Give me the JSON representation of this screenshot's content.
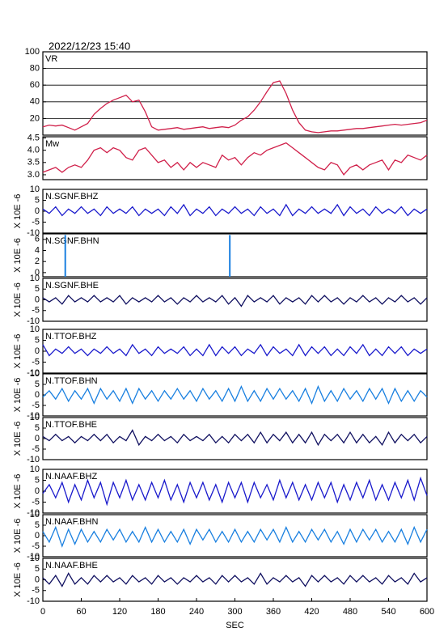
{
  "title": "2022/12/23 15:40",
  "chart_data": [
    {
      "type": "line",
      "title": "VR",
      "color": "#d0204a",
      "grid": true,
      "xlim": [
        0,
        600
      ],
      "ylim": [
        0,
        100
      ],
      "yticks": [
        20,
        40,
        60,
        80,
        100
      ],
      "x": [
        0,
        10,
        20,
        30,
        40,
        50,
        60,
        70,
        80,
        90,
        100,
        110,
        120,
        130,
        140,
        150,
        160,
        170,
        180,
        190,
        200,
        210,
        220,
        230,
        240,
        250,
        260,
        270,
        280,
        290,
        300,
        310,
        320,
        330,
        340,
        350,
        360,
        370,
        380,
        390,
        400,
        410,
        420,
        430,
        440,
        450,
        460,
        470,
        480,
        490,
        500,
        510,
        520,
        530,
        540,
        550,
        560,
        570,
        580,
        590,
        600
      ],
      "values": [
        10,
        12,
        11,
        12,
        9,
        6,
        10,
        14,
        25,
        32,
        38,
        42,
        45,
        48,
        40,
        42,
        28,
        10,
        6,
        7,
        8,
        9,
        7,
        8,
        9,
        10,
        8,
        9,
        10,
        9,
        12,
        18,
        22,
        30,
        40,
        52,
        63,
        65,
        50,
        30,
        15,
        6,
        4,
        3,
        4,
        5,
        5,
        6,
        7,
        8,
        8,
        9,
        10,
        11,
        12,
        13,
        12,
        13,
        14,
        15,
        18
      ]
    },
    {
      "type": "line",
      "title": "Mw",
      "color": "#d0204a",
      "xlim": [
        0,
        600
      ],
      "ylim": [
        2.8,
        4.55
      ],
      "yticks": [
        {
          "value": 3,
          "label": "3.0"
        },
        3.5,
        {
          "value": 4,
          "label": "4.0"
        },
        4.5
      ],
      "x": [
        0,
        10,
        20,
        30,
        40,
        50,
        60,
        70,
        80,
        90,
        100,
        110,
        120,
        130,
        140,
        150,
        160,
        170,
        180,
        190,
        200,
        210,
        220,
        230,
        240,
        250,
        260,
        270,
        280,
        290,
        300,
        310,
        320,
        330,
        340,
        350,
        360,
        370,
        380,
        390,
        400,
        410,
        420,
        430,
        440,
        450,
        460,
        470,
        480,
        490,
        500,
        510,
        520,
        530,
        540,
        550,
        560,
        570,
        580,
        590,
        600
      ],
      "values": [
        3.1,
        3.2,
        3.3,
        3.1,
        3.3,
        3.4,
        3.3,
        3.6,
        4.0,
        4.1,
        3.9,
        4.1,
        4.0,
        3.7,
        3.6,
        4.0,
        4.1,
        3.8,
        3.5,
        3.6,
        3.3,
        3.5,
        3.2,
        3.5,
        3.3,
        3.5,
        3.4,
        3.3,
        3.8,
        3.6,
        3.7,
        3.4,
        3.7,
        3.9,
        3.8,
        4.0,
        4.1,
        4.2,
        4.3,
        4.1,
        3.9,
        3.7,
        3.5,
        3.3,
        3.2,
        3.5,
        3.4,
        3.0,
        3.3,
        3.4,
        3.2,
        3.4,
        3.5,
        3.6,
        3.2,
        3.6,
        3.5,
        3.8,
        3.7,
        3.6,
        3.8
      ]
    },
    {
      "type": "line",
      "title": "N.SGNF.BHZ",
      "y_label": "X 10E -6",
      "color": "#1a1acc",
      "xlim": [
        0,
        600
      ],
      "ylim": [
        -10,
        10
      ],
      "yticks": [
        -10,
        -5,
        0,
        5,
        10
      ],
      "x": [
        0,
        10,
        20,
        30,
        40,
        50,
        60,
        70,
        80,
        90,
        100,
        110,
        120,
        130,
        140,
        150,
        160,
        170,
        180,
        190,
        200,
        210,
        220,
        230,
        240,
        250,
        260,
        270,
        280,
        290,
        300,
        310,
        320,
        330,
        340,
        350,
        360,
        370,
        380,
        390,
        400,
        410,
        420,
        430,
        440,
        450,
        460,
        470,
        480,
        490,
        500,
        510,
        520,
        530,
        540,
        550,
        560,
        570,
        580,
        590,
        600
      ],
      "values": [
        1,
        -1,
        2,
        -2,
        1,
        -1,
        2,
        -1,
        1,
        -2,
        2,
        -1,
        1,
        -1,
        2,
        -2,
        1,
        -1,
        1,
        -2,
        2,
        -1,
        3,
        -2,
        1,
        -1,
        2,
        -2,
        1,
        -1,
        2,
        -1,
        1,
        -2,
        2,
        -1,
        1,
        -2,
        3,
        -2,
        1,
        -1,
        2,
        -1,
        1,
        -1,
        3,
        -2,
        2,
        -1,
        1,
        -2,
        2,
        -1,
        1,
        -1,
        2,
        -2,
        1,
        -1,
        1
      ]
    },
    {
      "type": "stem",
      "title": "N.SGNF.BHN",
      "y_label": "X 10E -6",
      "color": "#1a80e0",
      "xlim": [
        0,
        600
      ],
      "ylim": [
        -0.75,
        7.0
      ],
      "yticks": [
        0,
        2,
        4,
        6
      ],
      "x": [
        35,
        292
      ],
      "values": [
        6.8,
        6.8
      ]
    },
    {
      "type": "line",
      "title": "N.SGNF.BHE",
      "y_label": "X 10E -6",
      "color": "#101060",
      "xlim": [
        0,
        600
      ],
      "ylim": [
        -10,
        10
      ],
      "yticks": [
        -10,
        -5,
        0,
        5,
        10
      ],
      "x": [
        0,
        10,
        20,
        30,
        40,
        50,
        60,
        70,
        80,
        90,
        100,
        110,
        120,
        130,
        140,
        150,
        160,
        170,
        180,
        190,
        200,
        210,
        220,
        230,
        240,
        250,
        260,
        270,
        280,
        290,
        300,
        310,
        320,
        330,
        340,
        350,
        360,
        370,
        380,
        390,
        400,
        410,
        420,
        430,
        440,
        450,
        460,
        470,
        480,
        490,
        500,
        510,
        520,
        530,
        540,
        550,
        560,
        570,
        580,
        590,
        600
      ],
      "values": [
        1,
        -1,
        1,
        -2,
        2,
        -1,
        1,
        -1,
        2,
        -1,
        1,
        -1,
        2,
        -2,
        1,
        -1,
        1,
        -1,
        2,
        -1,
        1,
        -2,
        1,
        -1,
        2,
        -1,
        1,
        -1,
        2,
        -2,
        1,
        -3,
        2,
        -1,
        1,
        -1,
        2,
        -2,
        1,
        -1,
        1,
        -2,
        2,
        -1,
        2,
        -1,
        1,
        -2,
        1,
        -1,
        2,
        -1,
        1,
        -2,
        1,
        -1,
        2,
        -1,
        1,
        -2,
        1
      ]
    },
    {
      "type": "line",
      "title": "N.TTOF.BHZ",
      "y_label": "X 10E -6",
      "color": "#1a1acc",
      "xlim": [
        0,
        600
      ],
      "ylim": [
        -10,
        10
      ],
      "yticks": [
        -10,
        -5,
        0,
        5,
        10
      ],
      "x": [
        0,
        10,
        20,
        30,
        40,
        50,
        60,
        70,
        80,
        90,
        100,
        110,
        120,
        130,
        140,
        150,
        160,
        170,
        180,
        190,
        200,
        210,
        220,
        230,
        240,
        250,
        260,
        270,
        280,
        290,
        300,
        310,
        320,
        330,
        340,
        350,
        360,
        370,
        380,
        390,
        400,
        410,
        420,
        430,
        440,
        450,
        460,
        470,
        480,
        490,
        500,
        510,
        520,
        530,
        540,
        550,
        560,
        570,
        580,
        590,
        600
      ],
      "values": [
        3,
        -2,
        1,
        -1,
        2,
        -1,
        1,
        -2,
        1,
        -1,
        2,
        -1,
        1,
        -2,
        3,
        -1,
        1,
        -2,
        2,
        -1,
        1,
        -1,
        2,
        -2,
        1,
        -2,
        3,
        -2,
        2,
        -1,
        2,
        -2,
        1,
        -1,
        3,
        -2,
        2,
        -1,
        1,
        -2,
        3,
        -2,
        2,
        -1,
        2,
        -2,
        1,
        -2,
        2,
        -1,
        3,
        -2,
        1,
        -2,
        2,
        -1,
        2,
        -2,
        1,
        -1,
        1
      ]
    },
    {
      "type": "line",
      "title": "N.TTOF.BHN",
      "y_label": "X 10E -6",
      "color": "#1a80e0",
      "xlim": [
        0,
        600
      ],
      "ylim": [
        -10,
        10
      ],
      "yticks": [
        -10,
        -5,
        0,
        5,
        10
      ],
      "x": [
        0,
        10,
        20,
        30,
        40,
        50,
        60,
        70,
        80,
        90,
        100,
        110,
        120,
        130,
        140,
        150,
        160,
        170,
        180,
        190,
        200,
        210,
        220,
        230,
        240,
        250,
        260,
        270,
        280,
        290,
        300,
        310,
        320,
        330,
        340,
        350,
        360,
        370,
        380,
        390,
        400,
        410,
        420,
        430,
        440,
        450,
        460,
        470,
        480,
        490,
        500,
        510,
        520,
        530,
        540,
        550,
        560,
        570,
        580,
        590,
        600
      ],
      "values": [
        -1,
        2,
        -2,
        3,
        -3,
        2,
        -2,
        3,
        -4,
        3,
        -2,
        2,
        -3,
        3,
        -4,
        3,
        -2,
        2,
        -3,
        2,
        -2,
        3,
        -2,
        2,
        -3,
        3,
        -2,
        2,
        -3,
        3,
        -3,
        4,
        -3,
        2,
        -3,
        3,
        -2,
        3,
        -2,
        2,
        -3,
        3,
        -4,
        4,
        -3,
        2,
        -3,
        3,
        -2,
        2,
        -3,
        3,
        -2,
        3,
        -4,
        3,
        -3,
        2,
        -3,
        2,
        -1
      ]
    },
    {
      "type": "line",
      "title": "N.TTOF.BHE",
      "y_label": "X 10E -6",
      "color": "#101060",
      "xlim": [
        0,
        600
      ],
      "ylim": [
        -10,
        10
      ],
      "yticks": [
        -10,
        -5,
        0,
        5,
        10
      ],
      "x": [
        0,
        10,
        20,
        30,
        40,
        50,
        60,
        70,
        80,
        90,
        100,
        110,
        120,
        130,
        140,
        150,
        160,
        170,
        180,
        190,
        200,
        210,
        220,
        230,
        240,
        250,
        260,
        270,
        280,
        290,
        300,
        310,
        320,
        330,
        340,
        350,
        360,
        370,
        380,
        390,
        400,
        410,
        420,
        430,
        440,
        450,
        460,
        470,
        480,
        490,
        500,
        510,
        520,
        530,
        540,
        550,
        560,
        570,
        580,
        590,
        600
      ],
      "values": [
        1,
        -1,
        2,
        -1,
        1,
        -2,
        1,
        -1,
        2,
        -1,
        2,
        -2,
        1,
        -1,
        4,
        -3,
        1,
        -1,
        2,
        -1,
        1,
        -2,
        2,
        -1,
        1,
        -1,
        2,
        -2,
        1,
        -2,
        2,
        -1,
        2,
        -2,
        3,
        -2,
        2,
        -1,
        3,
        -2,
        2,
        -2,
        3,
        -3,
        2,
        -1,
        2,
        -2,
        3,
        -2,
        2,
        -2,
        1,
        -3,
        3,
        -2,
        2,
        -1,
        2,
        -2,
        1
      ]
    },
    {
      "type": "line",
      "title": "N.NAAF.BHZ",
      "y_label": "X 10E -6",
      "color": "#1a1acc",
      "xlim": [
        0,
        600
      ],
      "ylim": [
        -10,
        10
      ],
      "yticks": [
        -10,
        -5,
        0,
        5,
        10
      ],
      "x": [
        0,
        10,
        20,
        30,
        40,
        50,
        60,
        70,
        80,
        90,
        100,
        110,
        120,
        130,
        140,
        150,
        160,
        170,
        180,
        190,
        200,
        210,
        220,
        230,
        240,
        250,
        260,
        270,
        280,
        290,
        300,
        310,
        320,
        330,
        340,
        350,
        360,
        370,
        380,
        390,
        400,
        410,
        420,
        430,
        440,
        450,
        460,
        470,
        480,
        490,
        500,
        510,
        520,
        530,
        540,
        550,
        560,
        570,
        580,
        590,
        600
      ],
      "values": [
        -1,
        3,
        -3,
        4,
        -5,
        3,
        -4,
        5,
        -3,
        4,
        -6,
        4,
        -3,
        5,
        -4,
        3,
        -4,
        4,
        -3,
        5,
        -4,
        3,
        -5,
        4,
        -3,
        4,
        -4,
        3,
        -5,
        4,
        -3,
        4,
        -5,
        4,
        -3,
        3,
        -4,
        5,
        -3,
        4,
        -4,
        3,
        -4,
        4,
        -3,
        4,
        -5,
        3,
        -4,
        4,
        -3,
        5,
        -4,
        3,
        -4,
        4,
        -3,
        5,
        -4,
        6,
        -2
      ]
    },
    {
      "type": "line",
      "title": "N.NAAF.BHN",
      "y_label": "X 10E -6",
      "color": "#1a80e0",
      "xlim": [
        0,
        600
      ],
      "ylim": [
        -10,
        10
      ],
      "yticks": [
        -10,
        -5,
        0,
        5,
        10
      ],
      "x": [
        0,
        10,
        20,
        30,
        40,
        50,
        60,
        70,
        80,
        90,
        100,
        110,
        120,
        130,
        140,
        150,
        160,
        170,
        180,
        190,
        200,
        210,
        220,
        230,
        240,
        250,
        260,
        270,
        280,
        290,
        300,
        310,
        320,
        330,
        340,
        350,
        360,
        370,
        380,
        390,
        400,
        410,
        420,
        430,
        440,
        450,
        460,
        470,
        480,
        490,
        500,
        510,
        520,
        530,
        540,
        550,
        560,
        570,
        580,
        590,
        600
      ],
      "values": [
        2,
        -3,
        4,
        -5,
        3,
        -4,
        3,
        -3,
        2,
        -3,
        3,
        -2,
        3,
        -3,
        2,
        -3,
        4,
        -3,
        3,
        -3,
        2,
        -3,
        3,
        -4,
        3,
        -2,
        3,
        -3,
        2,
        -3,
        3,
        -3,
        2,
        -3,
        3,
        -2,
        3,
        -3,
        4,
        -3,
        2,
        -3,
        3,
        -2,
        3,
        -3,
        2,
        -4,
        3,
        -3,
        3,
        -2,
        3,
        -3,
        2,
        -3,
        3,
        -4,
        4,
        -3,
        3
      ]
    },
    {
      "type": "line",
      "title": "N.NAAF.BHE",
      "y_label": "X 10E -6",
      "x_label": "SEC",
      "color": "#101060",
      "xlim": [
        0,
        600
      ],
      "xticks": [
        0,
        60,
        120,
        180,
        240,
        300,
        360,
        420,
        480,
        540,
        600
      ],
      "ylim": [
        -10,
        10
      ],
      "yticks": [
        -10,
        -5,
        0,
        5,
        10
      ],
      "x": [
        0,
        10,
        20,
        30,
        40,
        50,
        60,
        70,
        80,
        90,
        100,
        110,
        120,
        130,
        140,
        150,
        160,
        170,
        180,
        190,
        200,
        210,
        220,
        230,
        240,
        250,
        260,
        270,
        280,
        290,
        300,
        310,
        320,
        330,
        340,
        350,
        360,
        370,
        380,
        390,
        400,
        410,
        420,
        430,
        440,
        450,
        460,
        470,
        480,
        490,
        500,
        510,
        520,
        530,
        540,
        550,
        560,
        570,
        580,
        590,
        600
      ],
      "values": [
        1,
        -2,
        2,
        -3,
        3,
        -2,
        1,
        -2,
        2,
        -1,
        2,
        -1,
        1,
        -2,
        2,
        -1,
        1,
        -2,
        2,
        -1,
        1,
        -2,
        1,
        -1,
        2,
        -1,
        1,
        -2,
        2,
        -1,
        2,
        -1,
        1,
        -2,
        3,
        -2,
        1,
        -1,
        2,
        -1,
        1,
        -3,
        2,
        -1,
        2,
        -1,
        1,
        -2,
        2,
        -1,
        2,
        -1,
        1,
        -2,
        2,
        -1,
        1,
        -2,
        3,
        -1,
        1
      ]
    }
  ]
}
